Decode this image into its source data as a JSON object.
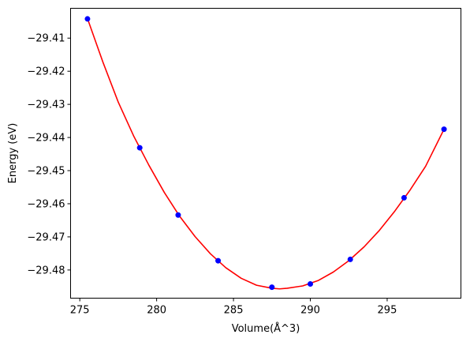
{
  "chart_data": {
    "type": "scatter",
    "title": "",
    "xlabel": "Volume(Å^3)",
    "ylabel": "Energy (eV)",
    "xlim": [
      274.4,
      299.8
    ],
    "ylim": [
      -29.4885,
      -29.401
    ],
    "x_ticks": [
      275,
      280,
      285,
      290,
      295
    ],
    "y_ticks": [
      -29.41,
      -29.42,
      -29.43,
      -29.44,
      -29.45,
      -29.46,
      -29.47,
      -29.48
    ],
    "x_tick_labels": [
      "275",
      "280",
      "285",
      "290",
      "295"
    ],
    "y_tick_labels": [
      "−29.41",
      "−29.42",
      "−29.43",
      "−29.44",
      "−29.45",
      "−29.46",
      "−29.47",
      "−29.48"
    ],
    "grid": false,
    "series": [
      {
        "kind": "scatter",
        "color": "#0000ff",
        "x": [
          275.5,
          278.9,
          281.4,
          284.0,
          287.5,
          290.0,
          292.6,
          296.1,
          298.7
        ],
        "y": [
          -29.4042,
          -29.4431,
          -29.4634,
          -29.4772,
          -29.4852,
          -29.4842,
          -29.4768,
          -29.4582,
          -29.4375
        ]
      },
      {
        "kind": "line",
        "color": "#ff0000",
        "x": [
          275.5,
          276.5,
          277.5,
          278.5,
          279.5,
          280.5,
          281.5,
          282.5,
          283.5,
          284.5,
          285.5,
          286.5,
          287.5,
          288.0,
          288.5,
          289.5,
          290.5,
          291.5,
          292.5,
          293.5,
          294.5,
          295.5,
          296.5,
          297.5,
          298.7
        ],
        "y": [
          -29.4041,
          -29.4172,
          -29.4293,
          -29.4395,
          -29.4484,
          -29.4566,
          -29.4638,
          -29.4699,
          -29.4751,
          -29.4793,
          -29.4825,
          -29.4846,
          -29.4855,
          -29.4857,
          -29.4855,
          -29.4848,
          -29.4832,
          -29.4806,
          -29.4772,
          -29.473,
          -29.468,
          -29.4622,
          -29.4558,
          -29.4487,
          -29.4375
        ]
      }
    ]
  }
}
